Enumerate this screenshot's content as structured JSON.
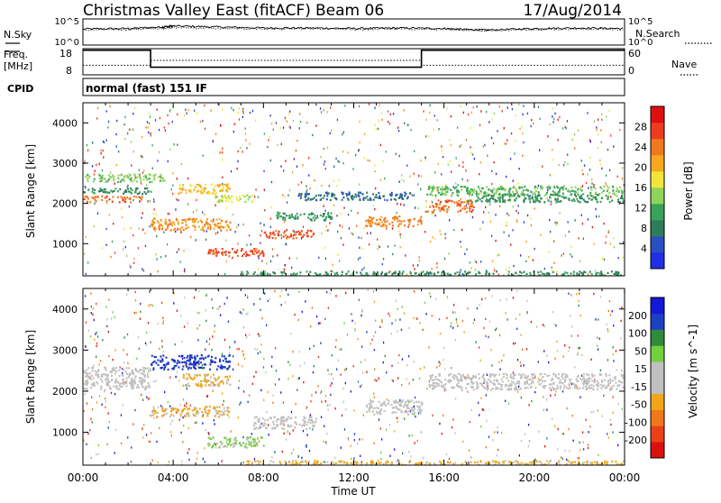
{
  "header": {
    "station": "Christmas Valley East (fitACF)",
    "beam": "Beam 06",
    "date": "17/Aug/2014"
  },
  "left_labels": {
    "nsky": "N.Sky",
    "freq_line1": "Freq.",
    "freq_line2": "[MHz]",
    "cpid": "CPID"
  },
  "right_labels": {
    "nsearch": "N.Search",
    "nave": "Nave"
  },
  "cpid_text": "normal (fast) 151 IF",
  "colors": {
    "power": [
      "#1f2fe6",
      "#2a4fc0",
      "#2e7d5a",
      "#3aa35a",
      "#8fd35b",
      "#f2e53a",
      "#f7a820",
      "#f2781f",
      "#ec3b1f",
      "#e01010"
    ],
    "velocity": [
      "#1418d8",
      "#1d3fc2",
      "#2f8a3a",
      "#72cf3e",
      "#c0c0c0",
      "#c0c0c0",
      "#f2a516",
      "#f0781a",
      "#ec4018",
      "#dd1010"
    ]
  },
  "chart_data": [
    {
      "type": "line",
      "title": "N.Sky / N.Search",
      "xlabel": "",
      "ylabel": "N.Sky",
      "y2label": "N.Search",
      "yticks": [
        "10^5",
        "10^0"
      ],
      "y2ticks": [
        "10^5",
        "10^0"
      ],
      "x": [
        0,
        2,
        3.5,
        4,
        6,
        8,
        10,
        12,
        14,
        16,
        17,
        18,
        20,
        22,
        24
      ],
      "series": [
        {
          "name": "N.Sky",
          "values": [
            3.2,
            3.3,
            3.6,
            3.8,
            3.6,
            3.4,
            3.4,
            3.3,
            3.4,
            3.3,
            3.1,
            3.0,
            3.3,
            3.4,
            3.3
          ]
        },
        {
          "name": "N.Search",
          "values": [
            3.0,
            3.1,
            3.3,
            3.5,
            3.3,
            3.2,
            3.2,
            3.1,
            3.2,
            3.1,
            3.0,
            2.9,
            3.1,
            3.2,
            3.1
          ]
        }
      ]
    },
    {
      "type": "line",
      "title": "Freq / Nave",
      "xlabel": "",
      "ylabel": "Freq. [MHz]",
      "y2label": "Nave",
      "yticks": [
        "18",
        "8"
      ],
      "y2ticks": [
        "60",
        "0"
      ],
      "ylim": [
        8,
        18
      ],
      "y2lim": [
        0,
        60
      ],
      "freq_steps": [
        {
          "from": 0,
          "to": 3.0,
          "value": 17.4
        },
        {
          "from": 3.0,
          "to": 15.0,
          "value": 10.9
        },
        {
          "from": 15.0,
          "to": 24,
          "value": 17.4
        }
      ],
      "nave_steps": [
        {
          "from": 0,
          "to": 3.0,
          "value": 22
        },
        {
          "from": 3.0,
          "to": 15.0,
          "value": 33
        },
        {
          "from": 15.0,
          "to": 24,
          "value": 22
        }
      ]
    },
    {
      "type": "heatmap",
      "title": "",
      "xlabel": "",
      "ylabel": "Slant Range [km]",
      "ylim": [
        200,
        4500
      ],
      "xlim": [
        0,
        24
      ],
      "yticks": [
        "4000",
        "3000",
        "2000",
        "1000"
      ],
      "colorbar_label": "Power [dB]",
      "colorbar_ticks": [
        "28",
        "24",
        "20",
        "16",
        "12",
        "8",
        "4"
      ],
      "clim": [
        0,
        30
      ],
      "regions": [
        {
          "t0": 0.0,
          "t1": 3.6,
          "r0": 2550,
          "r1": 2750,
          "value": 13
        },
        {
          "t0": 0.0,
          "t1": 2.6,
          "r0": 2050,
          "r1": 2200,
          "value": 23
        },
        {
          "t0": 0.0,
          "t1": 3.0,
          "r0": 2250,
          "r1": 2400,
          "value": 8
        },
        {
          "t0": 3.0,
          "t1": 6.5,
          "r0": 1350,
          "r1": 1650,
          "value": 21
        },
        {
          "t0": 4.2,
          "t1": 6.5,
          "r0": 2250,
          "r1": 2500,
          "value": 18
        },
        {
          "t0": 5.8,
          "t1": 7.5,
          "r0": 2050,
          "r1": 2250,
          "value": 15
        },
        {
          "t0": 8.0,
          "t1": 10.3,
          "r0": 1150,
          "r1": 1350,
          "value": 24
        },
        {
          "t0": 5.5,
          "t1": 8.0,
          "r0": 700,
          "r1": 900,
          "value": 25
        },
        {
          "t0": 8.5,
          "t1": 11.0,
          "r0": 1600,
          "r1": 1800,
          "value": 10
        },
        {
          "t0": 12.5,
          "t1": 15.0,
          "r0": 1450,
          "r1": 1700,
          "value": 22
        },
        {
          "t0": 9.5,
          "t1": 14.5,
          "r0": 2100,
          "r1": 2300,
          "value": 6
        },
        {
          "t0": 15.2,
          "t1": 17.3,
          "r0": 1800,
          "r1": 2100,
          "value": 23
        },
        {
          "t0": 15.2,
          "t1": 24.0,
          "r0": 2200,
          "r1": 2450,
          "value": 12
        },
        {
          "t0": 17.0,
          "t1": 24.0,
          "r0": 2050,
          "r1": 2250,
          "value": 9
        },
        {
          "t0": 7.0,
          "t1": 24.0,
          "r0": 200,
          "r1": 330,
          "value": 9
        }
      ]
    },
    {
      "type": "heatmap",
      "title": "",
      "xlabel": "Time UT",
      "ylabel": "Slant Range [km]",
      "ylim": [
        200,
        4500
      ],
      "xlim": [
        0,
        24
      ],
      "xticks": [
        "00:00",
        "04:00",
        "08:00",
        "12:00",
        "16:00",
        "20:00",
        "00:00"
      ],
      "yticks": [
        "4000",
        "3000",
        "2000",
        "1000"
      ],
      "colorbar_label": "Velocity [m s^-1]",
      "colorbar_ticks": [
        "200",
        "100",
        "50",
        "15",
        "-15",
        "-50",
        "-100",
        "-200"
      ],
      "clim": [
        -250,
        250
      ],
      "regions": [
        {
          "t0": 0.0,
          "t1": 3.0,
          "r0": 2050,
          "r1": 2600,
          "value": 0
        },
        {
          "t0": 3.0,
          "t1": 6.5,
          "r0": 2550,
          "r1": 2900,
          "value": 180
        },
        {
          "t0": 4.4,
          "t1": 6.5,
          "r0": 2150,
          "r1": 2450,
          "value": -60
        },
        {
          "t0": 3.0,
          "t1": 6.5,
          "r0": 1400,
          "r1": 1650,
          "value": -60
        },
        {
          "t0": 5.5,
          "t1": 8.0,
          "r0": 650,
          "r1": 900,
          "value": 60
        },
        {
          "t0": 7.5,
          "t1": 10.3,
          "r0": 1100,
          "r1": 1400,
          "value": 0
        },
        {
          "t0": 12.5,
          "t1": 15.0,
          "r0": 1450,
          "r1": 1800,
          "value": 0
        },
        {
          "t0": 15.3,
          "t1": 24.0,
          "r0": 2050,
          "r1": 2450,
          "value": 0
        },
        {
          "t0": 7.0,
          "t1": 24.0,
          "r0": 200,
          "r1": 330,
          "value": -60
        }
      ]
    }
  ]
}
